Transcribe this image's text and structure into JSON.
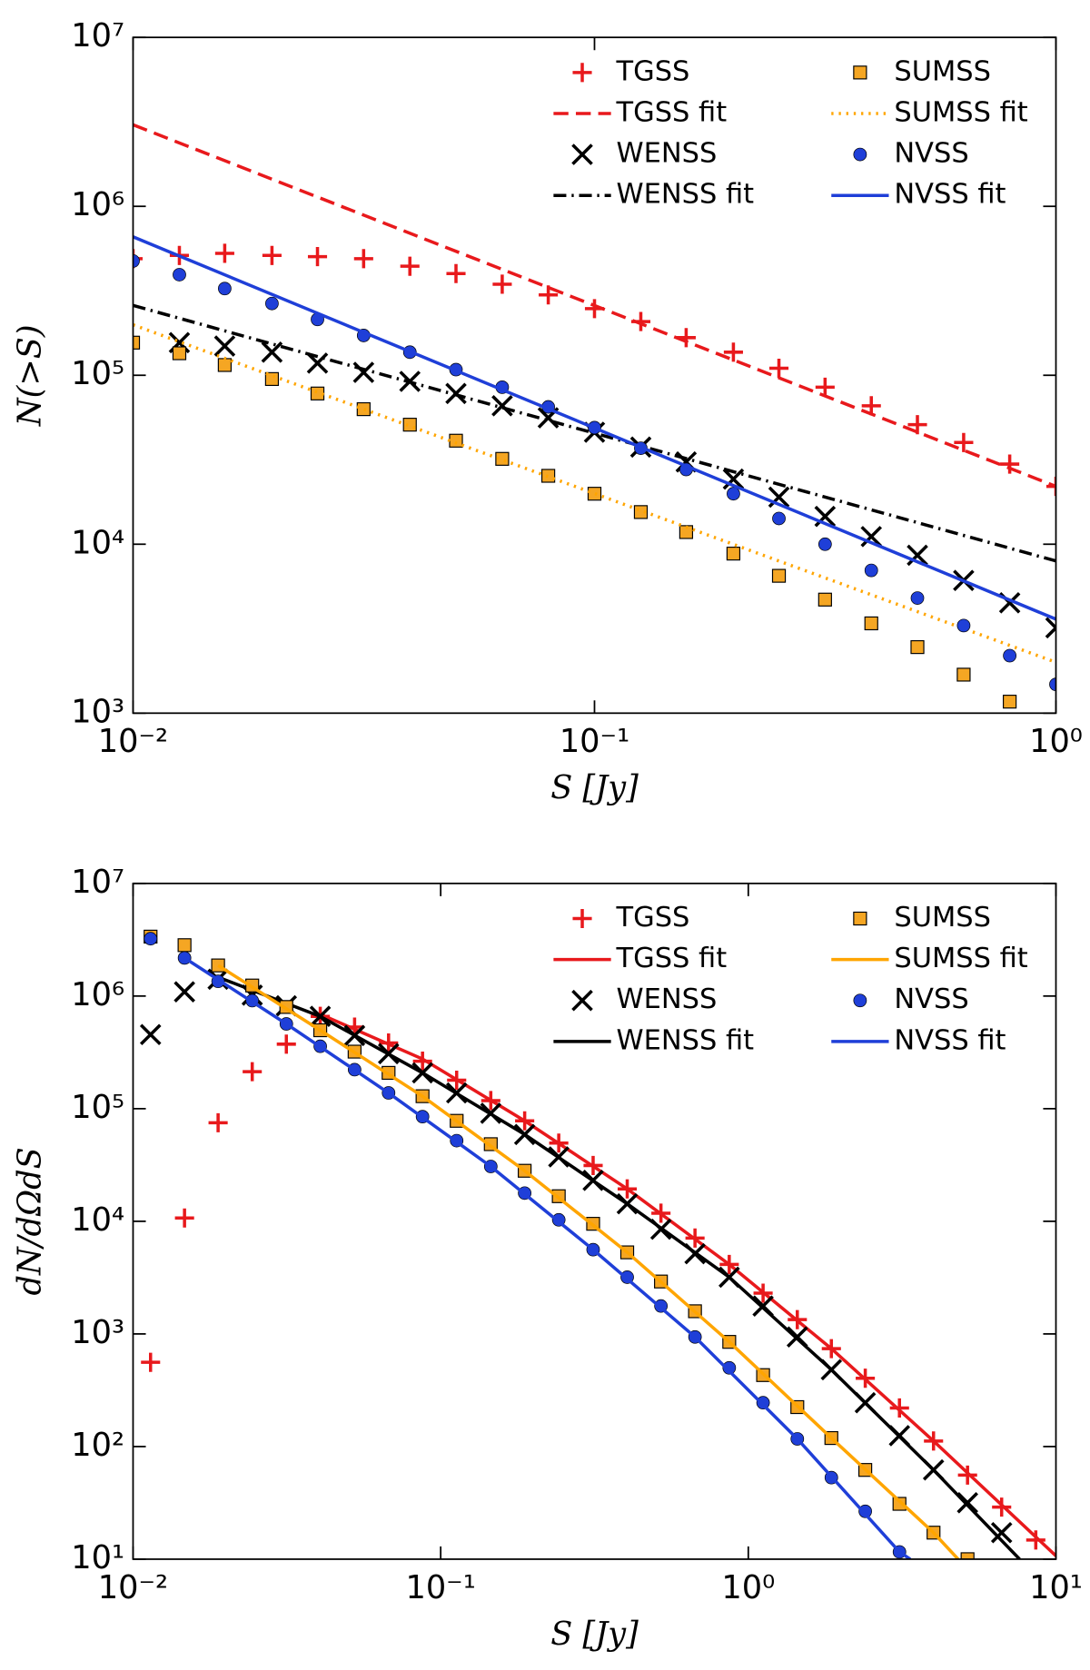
{
  "chart_data": [
    {
      "type": "scatter",
      "xlabel": "S [Jy]",
      "ylabel": "N(>S)",
      "xscale": "log",
      "yscale": "log",
      "xlim": [
        0.01,
        1
      ],
      "ylim": [
        1000,
        10000000
      ],
      "xticks": [
        {
          "value": 0.01,
          "label": "10⁻²"
        },
        {
          "value": 0.1,
          "label": "10⁻¹"
        },
        {
          "value": 1,
          "label": "10⁰"
        }
      ],
      "yticks": [
        {
          "value": 1000,
          "label": "10³"
        },
        {
          "value": 10000,
          "label": "10⁴"
        },
        {
          "value": 100000,
          "label": "10⁵"
        },
        {
          "value": 1000000,
          "label": "10⁶"
        },
        {
          "value": 10000000,
          "label": "10⁷"
        }
      ],
      "legend": "upper right",
      "x": [
        0.01,
        0.0126,
        0.0158,
        0.02,
        0.0251,
        0.0316,
        0.0398,
        0.0501,
        0.0631,
        0.0794,
        0.1,
        0.126,
        0.158,
        0.2,
        0.251,
        0.316,
        0.398,
        0.501,
        0.631,
        0.794,
        1.0
      ],
      "series": [
        {
          "name": "TGSS",
          "color": "#e8191c",
          "marker": "plus",
          "values": [
            490000,
            512000,
            527000,
            512000,
            504000,
            490000,
            442000,
            400000,
            346000,
            299000,
            248000,
            208000,
            167000,
            137000,
            110000,
            85000,
            66000,
            51000,
            40000,
            29800,
            22000
          ]
        },
        {
          "name": "TGSS fit",
          "color": "#e8191c",
          "linestyle": "dashed",
          "x": [
            0.01,
            1
          ],
          "values": [
            3040000,
            22000
          ]
        },
        {
          "name": "WENSS",
          "color": "#000000",
          "marker": "x",
          "values": [
            null,
            156000,
            149000,
            137000,
            118000,
            104000,
            92000,
            78000,
            66000,
            56000,
            46000,
            37600,
            30700,
            24300,
            19000,
            14600,
            11100,
            8600,
            6100,
            4500,
            3200
          ]
        },
        {
          "name": "WENSS fit",
          "color": "#000000",
          "linestyle": "dashdot",
          "x": [
            0.01,
            1
          ],
          "values": [
            259000,
            7960
          ]
        },
        {
          "name": "SUMSS",
          "color": "#f5a623",
          "marker": "square",
          "values": [
            156000,
            135000,
            115000,
            95000,
            78000,
            63000,
            51000,
            41000,
            32000,
            25400,
            19900,
            15500,
            11800,
            8800,
            6500,
            4700,
            3400,
            2460,
            1690,
            1170,
            null
          ]
        },
        {
          "name": "SUMSS fit",
          "color": "#ffa500",
          "linestyle": "dotted",
          "x": [
            0.01,
            1
          ],
          "values": [
            199000,
            2000
          ]
        },
        {
          "name": "NVSS",
          "color": "#1f3fd8",
          "marker": "circle",
          "values": [
            475000,
            394000,
            326000,
            266000,
            214000,
            172000,
            137000,
            108000,
            85000,
            65000,
            49000,
            37000,
            27700,
            19900,
            14200,
            10000,
            7000,
            4800,
            3300,
            2190,
            1480
          ]
        },
        {
          "name": "NVSS fit",
          "color": "#1f3fd8",
          "linestyle": "solid",
          "x": [
            0.01,
            1
          ],
          "values": [
            660000,
            3600
          ]
        }
      ]
    },
    {
      "type": "scatter",
      "xlabel": "S [Jy]",
      "ylabel": "dN/dΩdS",
      "xscale": "log",
      "yscale": "log",
      "xlim": [
        0.01,
        10
      ],
      "ylim": [
        10,
        10000000
      ],
      "xticks": [
        {
          "value": 0.01,
          "label": "10⁻²"
        },
        {
          "value": 0.1,
          "label": "10⁻¹"
        },
        {
          "value": 1,
          "label": "10⁰"
        },
        {
          "value": 10,
          "label": "10¹"
        }
      ],
      "yticks": [
        {
          "value": 10,
          "label": "10¹"
        },
        {
          "value": 100,
          "label": "10²"
        },
        {
          "value": 1000,
          "label": "10³"
        },
        {
          "value": 10000,
          "label": "10⁴"
        },
        {
          "value": 100000,
          "label": "10⁵"
        },
        {
          "value": 1000000,
          "label": "10⁶"
        },
        {
          "value": 10000000,
          "label": "10⁷"
        }
      ],
      "legend": "upper right",
      "x": [
        0.0114,
        0.0147,
        0.0189,
        0.0244,
        0.0315,
        0.0406,
        0.0525,
        0.0677,
        0.0873,
        0.1127,
        0.1455,
        0.1875,
        0.242,
        0.313,
        0.404,
        0.52,
        0.671,
        0.867,
        1.117,
        1.443,
        1.862,
        2.4,
        3.1,
        4.0,
        5.16,
        6.66,
        8.6
      ],
      "series": [
        {
          "name": "TGSS",
          "color": "#e8191c",
          "marker": "plus",
          "values": [
            560,
            10700,
            75000,
            213000,
            374000,
            660000,
            530000,
            383000,
            264000,
            179000,
            118000,
            78000,
            49500,
            31300,
            19400,
            11800,
            7100,
            4140,
            2300,
            1340,
            740,
            404,
            220,
            112,
            55.8,
            29.0,
            14.8
          ]
        },
        {
          "name": "TGSS fit",
          "color": "#e8191c",
          "linestyle": "solid",
          "x": [
            0.0406,
            0.0873,
            0.1875,
            0.404,
            0.867,
            1.862,
            4.0,
            10
          ],
          "values": [
            690000,
            276000,
            78000,
            19400,
            4140,
            740,
            112,
            10.7
          ]
        },
        {
          "name": "WENSS",
          "color": "#000000",
          "marker": "x",
          "values": [
            455000,
            1090000,
            1410000,
            1020000,
            820000,
            660000,
            446000,
            308000,
            208000,
            138000,
            91000,
            59000,
            37300,
            23100,
            14300,
            8500,
            5150,
            3190,
            1770,
            940,
            481,
            245,
            125,
            62,
            31.7,
            17.2,
            null
          ]
        },
        {
          "name": "WENSS fit",
          "color": "#000000",
          "linestyle": "solid",
          "x": [
            0.0189,
            0.0406,
            0.0873,
            0.1875,
            0.404,
            0.867,
            1.862,
            4.0,
            7.62
          ],
          "values": [
            1470000,
            660000,
            208000,
            59000,
            14300,
            3190,
            481,
            62,
            10
          ]
        },
        {
          "name": "SUMSS",
          "color": "#f5a623",
          "marker": "square",
          "values": [
            3370000,
            2830000,
            1870000,
            1240000,
            800000,
            497000,
            321000,
            208000,
            129000,
            78000,
            48400,
            28100,
            16700,
            9500,
            5300,
            2920,
            1590,
            850,
            431,
            224,
            119,
            62,
            31,
            17.2,
            10,
            null,
            null
          ]
        },
        {
          "name": "SUMSS fit",
          "color": "#ffa500",
          "linestyle": "solid",
          "x": [
            0.0189,
            0.0406,
            0.0873,
            0.1875,
            0.404,
            0.867,
            1.862,
            4.0,
            4.81
          ],
          "values": [
            1870000,
            497000,
            129000,
            28100,
            5300,
            850,
            119,
            17.2,
            10
          ]
        },
        {
          "name": "NVSS",
          "color": "#1f3fd8",
          "marker": "circle",
          "values": [
            3230000,
            2180000,
            1350000,
            910000,
            566000,
            358000,
            222000,
            138000,
            85000,
            52000,
            30700,
            17800,
            10300,
            5600,
            3190,
            1770,
            940,
            500,
            245,
            117,
            53,
            26.6,
            11.6,
            null,
            null,
            null,
            null
          ]
        },
        {
          "name": "NVSS fit",
          "color": "#1f3fd8",
          "linestyle": "solid",
          "x": [
            0.0147,
            0.0315,
            0.0677,
            0.1455,
            0.313,
            0.671,
            1.443,
            3.1,
            3.36
          ],
          "values": [
            2180000,
            566000,
            138000,
            30700,
            5600,
            940,
            117,
            11.6,
            10
          ]
        }
      ]
    }
  ]
}
